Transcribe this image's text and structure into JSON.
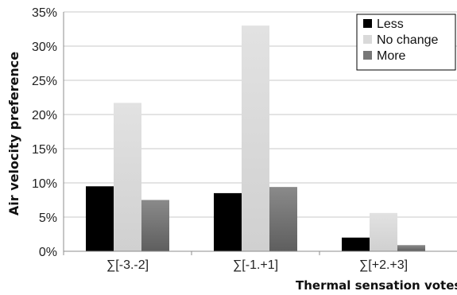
{
  "chart_data": {
    "type": "bar",
    "title": "",
    "xlabel": "Thermal sensation votes",
    "ylabel": "Air velocity preference",
    "ylim": [
      0,
      35
    ],
    "y_ticks": [
      "0%",
      "5%",
      "10%",
      "15%",
      "20%",
      "25%",
      "30%",
      "35%"
    ],
    "y_tick_values": [
      0,
      5,
      10,
      15,
      20,
      25,
      30,
      35
    ],
    "grid": true,
    "legend_position": "top-right",
    "categories": [
      "∑[-3.-2]",
      "∑[-1.+1]",
      "∑[+2.+3]"
    ],
    "series": [
      {
        "name": "Less",
        "color": "#000000",
        "values": [
          9.5,
          8.5,
          2.0
        ]
      },
      {
        "name": "No change",
        "color": "#d9d9d9",
        "values": [
          21.7,
          33.0,
          5.6
        ]
      },
      {
        "name": "More",
        "color": "#777777",
        "values": [
          7.5,
          9.4,
          0.9
        ]
      }
    ]
  }
}
